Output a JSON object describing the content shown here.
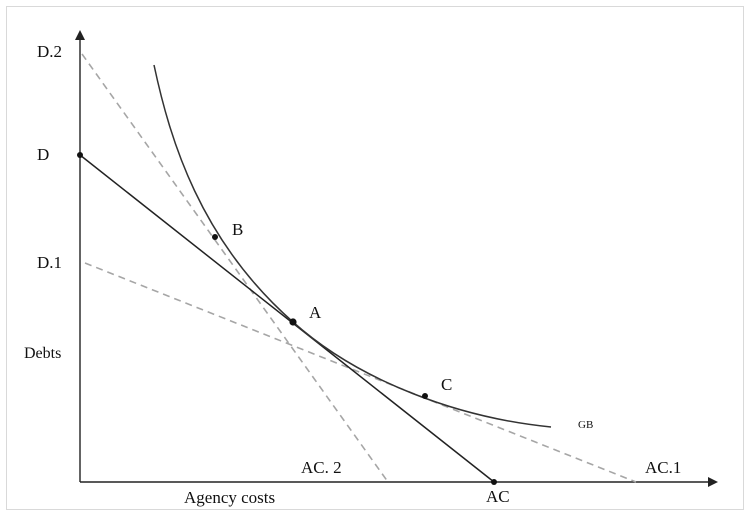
{
  "figure": {
    "axis_labels": {
      "x": "Agency costs",
      "y": "Debts"
    },
    "y_tick_labels": {
      "d2": "D.2",
      "d": "D",
      "d1": "D.1"
    },
    "x_tick_labels": {
      "ac2": "AC. 2",
      "ac": "AC",
      "ac1": "AC.1"
    },
    "curve_label": "GB",
    "points": {
      "a": "A",
      "b": "B",
      "c": "C"
    },
    "colors": {
      "axis": "#222222",
      "solid_line": "#222222",
      "dashed_line": "#a6a6a6",
      "curve": "#333333",
      "frame": "#d9d9d9"
    }
  }
}
